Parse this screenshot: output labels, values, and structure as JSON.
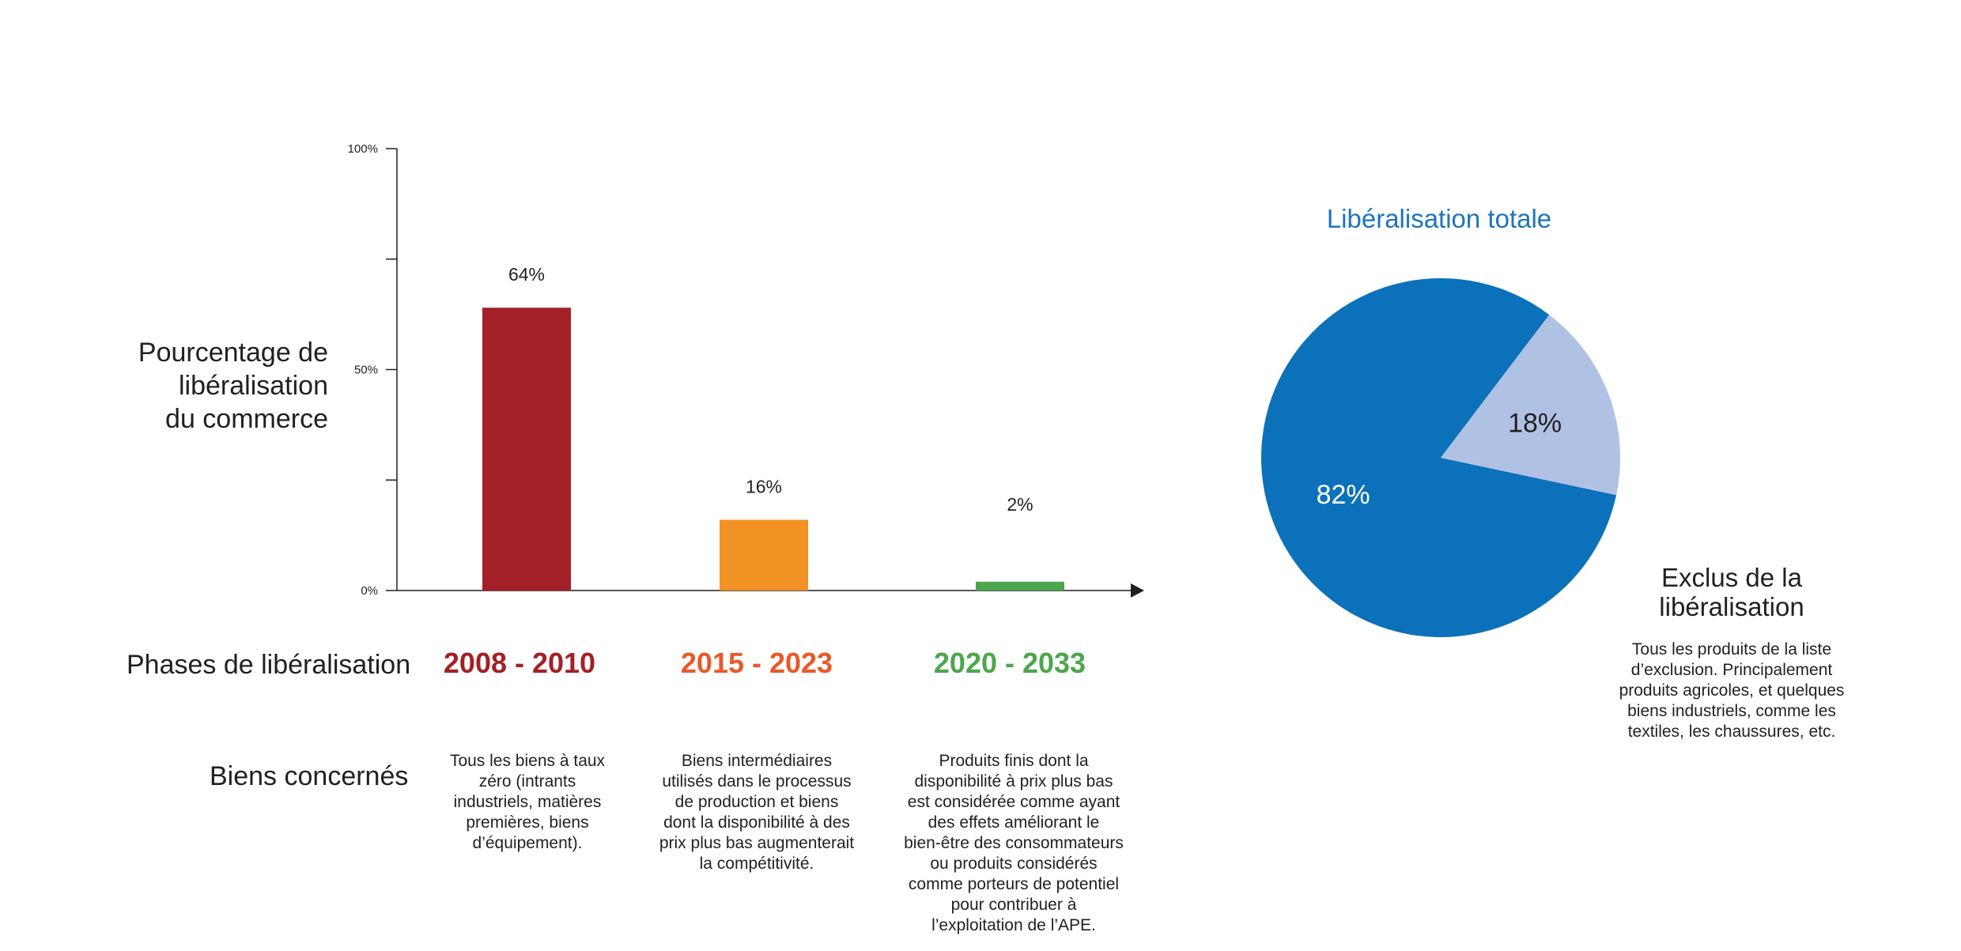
{
  "chart_data": [
    {
      "type": "bar",
      "categories": [
        "2008 - 2010",
        "2015 - 2023",
        "2020 - 2033"
      ],
      "values": [
        64,
        16,
        2
      ],
      "value_labels": [
        "64%",
        "16%",
        "2%"
      ],
      "colors": [
        "#a32126",
        "#f29124",
        "#4ca64d"
      ],
      "ylim": [
        0,
        100
      ],
      "yticks": [
        0,
        25,
        50,
        75,
        100
      ],
      "ytick_labels": [
        "0%",
        "",
        "50%",
        "",
        "100%"
      ],
      "ylabel_lines": [
        "Pourcentage de",
        "libéralisation",
        "du commerce"
      ],
      "grid": false,
      "legend": "none"
    },
    {
      "type": "pie",
      "title": "Libéralisation totale",
      "values": [
        82,
        18
      ],
      "value_labels": [
        "82%",
        "18%"
      ],
      "colors": [
        "#0b71ba",
        "#b0c2e4"
      ],
      "label_colors": [
        "#ffffff",
        "#231f20"
      ],
      "title_color": "#1b75bb",
      "legend": "none"
    }
  ],
  "rows": {
    "phases_title": "Phases de libéralisation",
    "goods_title": "Biens concernés"
  },
  "phases": [
    {
      "label": "2008 - 2010",
      "color": "#a32126",
      "desc": [
        "Tous les biens à taux",
        "zéro (intrants",
        "industriels, matières",
        "premières, biens",
        "d’équipement)."
      ]
    },
    {
      "label": "2015 - 2023",
      "color": "#e8592a",
      "desc": [
        "Biens intermédiaires",
        "utilisés dans le processus",
        "de production et biens",
        "dont la disponibilité à des",
        "prix plus bas augmenterait",
        "la compétitivité."
      ]
    },
    {
      "label": "2020 - 2033",
      "color": "#4ca64d",
      "desc": [
        "Produits finis dont la",
        "disponibilité à prix plus bas",
        "est considérée comme ayant",
        "des effets améliorant le",
        "bien-être des consommateurs",
        "ou produits considérés",
        "comme porteurs de potentiel",
        "pour contribuer à",
        "l’exploitation de l’APE."
      ]
    }
  ],
  "exclusion": {
    "title_lines": [
      "Exclus de la",
      "libéralisation"
    ],
    "desc": [
      "Tous les produits de la liste",
      "d’exclusion. Principalement",
      "produits agricoles, et quelques",
      "biens industriels, comme les",
      "textiles, les chaussures, etc."
    ]
  }
}
